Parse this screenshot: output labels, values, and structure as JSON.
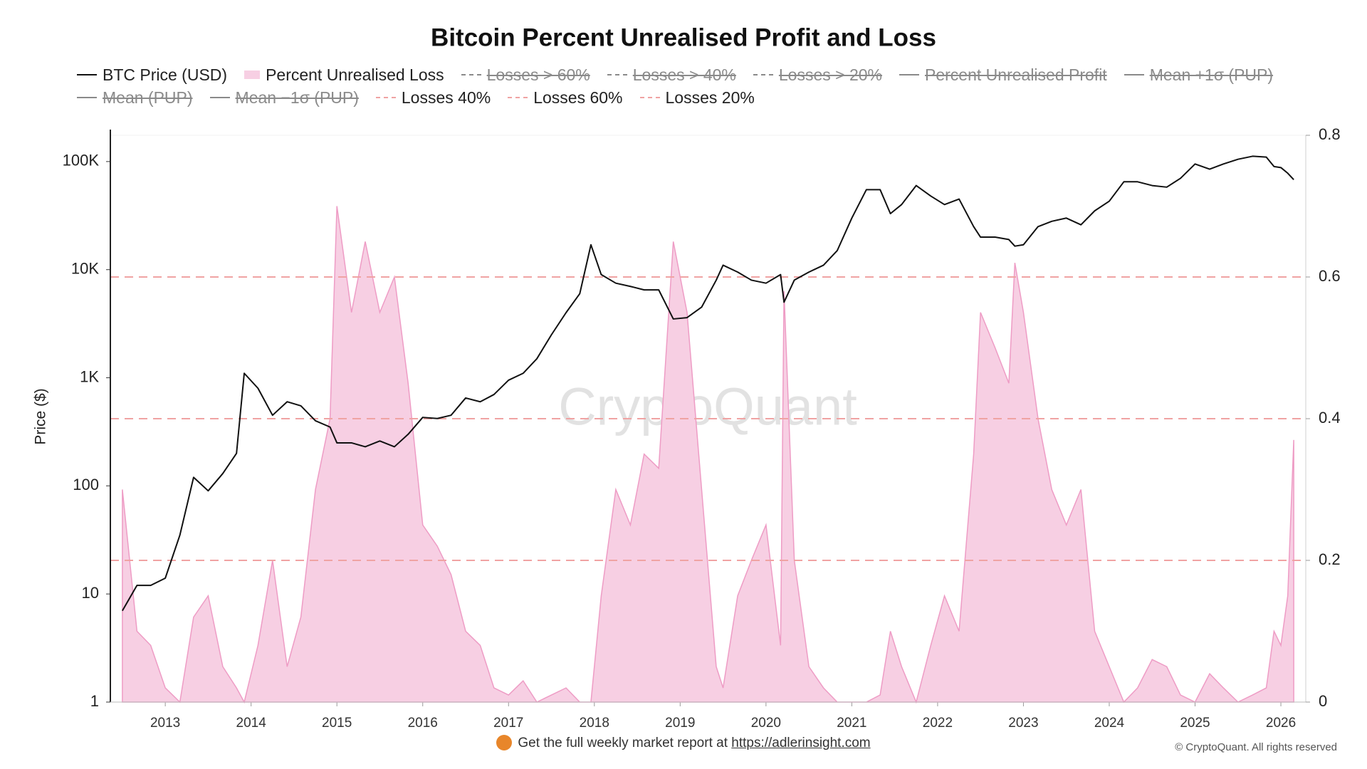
{
  "chart_data": {
    "type": "line",
    "title": "Bitcoin Percent Unrealised Profit and Loss",
    "y_label": "Price ($)",
    "watermark": "CryptoQuant",
    "footer_text": "Get the full weekly market report at",
    "footer_link": "https://adlerinsight.com",
    "copyright": "© CryptoQuant. All rights reserved",
    "ylog": true,
    "xlim": [
      2012.36,
      2026.29
    ],
    "xticks": [
      2013,
      2014,
      2015,
      2016,
      2017,
      2018,
      2019,
      2020,
      2021,
      2022,
      2023,
      2024,
      2025,
      2026
    ],
    "ylim": [
      1,
      175000
    ],
    "yticks": [
      1,
      10,
      100,
      {
        "value": 1000,
        "label": "1K"
      },
      {
        "value": 10000,
        "label": "10K"
      },
      {
        "value": 100000,
        "label": "100K"
      }
    ],
    "y2lim": [
      0,
      0.8
    ],
    "y2ticks": [
      0,
      0.2,
      0.4,
      0.6,
      0.8
    ],
    "x": [
      2012.5,
      2012.67,
      2012.83,
      2013.0,
      2013.17,
      2013.33,
      2013.5,
      2013.67,
      2013.83,
      2013.92,
      2014.08,
      2014.25,
      2014.42,
      2014.58,
      2014.75,
      2014.92,
      2015.0,
      2015.17,
      2015.33,
      2015.5,
      2015.67,
      2015.83,
      2016.0,
      2016.17,
      2016.33,
      2016.5,
      2016.67,
      2016.83,
      2017.0,
      2017.17,
      2017.33,
      2017.5,
      2017.67,
      2017.83,
      2017.96,
      2018.08,
      2018.25,
      2018.42,
      2018.58,
      2018.75,
      2018.92,
      2019.08,
      2019.25,
      2019.42,
      2019.5,
      2019.67,
      2019.83,
      2020.0,
      2020.17,
      2020.21,
      2020.33,
      2020.5,
      2020.67,
      2020.83,
      2021.0,
      2021.17,
      2021.33,
      2021.45,
      2021.58,
      2021.75,
      2021.92,
      2022.08,
      2022.25,
      2022.42,
      2022.5,
      2022.67,
      2022.83,
      2022.9,
      2023.0,
      2023.17,
      2023.33,
      2023.5,
      2023.67,
      2023.83,
      2024.0,
      2024.17,
      2024.33,
      2024.5,
      2024.67,
      2024.83,
      2025.0,
      2025.17,
      2025.33,
      2025.5,
      2025.67,
      2025.83,
      2025.92,
      2026.0,
      2026.08,
      2026.15
    ],
    "series": [
      {
        "name": "BTC Price (USD)",
        "color": "#111111",
        "axis": "y",
        "kind": "line",
        "values": [
          7,
          12,
          12,
          14,
          35,
          120,
          90,
          130,
          200,
          1100,
          800,
          450,
          600,
          550,
          400,
          350,
          250,
          250,
          230,
          260,
          230,
          300,
          430,
          420,
          450,
          650,
          600,
          700,
          950,
          1100,
          1500,
          2500,
          4000,
          6000,
          17000,
          9000,
          7500,
          7000,
          6500,
          6500,
          3500,
          3600,
          4500,
          8000,
          11000,
          9500,
          8000,
          7500,
          9000,
          5000,
          8000,
          9500,
          11000,
          15000,
          30000,
          55000,
          55000,
          33000,
          40000,
          60000,
          48000,
          40000,
          45000,
          25000,
          20000,
          20000,
          19000,
          16500,
          17000,
          25000,
          28000,
          30000,
          26000,
          35000,
          43000,
          65000,
          65000,
          60000,
          58000,
          70000,
          95000,
          85000,
          95000,
          105000,
          112000,
          110000,
          90000,
          88000,
          78000,
          68000
        ]
      },
      {
        "name": "Percent Unrealised Loss",
        "color": "#f7cfe3",
        "stroke": "#ee9cc5",
        "axis": "y2",
        "kind": "area",
        "values": [
          0.3,
          0.1,
          0.08,
          0.02,
          0,
          0.12,
          0.15,
          0.05,
          0.02,
          0,
          0.08,
          0.2,
          0.05,
          0.12,
          0.3,
          0.4,
          0.7,
          0.55,
          0.65,
          0.55,
          0.6,
          0.45,
          0.25,
          0.22,
          0.18,
          0.1,
          0.08,
          0.02,
          0.01,
          0.03,
          0,
          0.01,
          0.02,
          0,
          0,
          0.15,
          0.3,
          0.25,
          0.35,
          0.33,
          0.65,
          0.55,
          0.3,
          0.05,
          0.02,
          0.15,
          0.2,
          0.25,
          0.08,
          0.58,
          0.2,
          0.05,
          0.02,
          0,
          0,
          0,
          0.01,
          0.1,
          0.05,
          0,
          0.08,
          0.15,
          0.1,
          0.35,
          0.55,
          0.5,
          0.45,
          0.62,
          0.55,
          0.4,
          0.3,
          0.25,
          0.3,
          0.1,
          0.05,
          0,
          0.02,
          0.06,
          0.05,
          0.01,
          0,
          0.04,
          0.02,
          0,
          0.01,
          0.02,
          0.1,
          0.08,
          0.15,
          0.37
        ]
      },
      {
        "name": "Losses > 60%",
        "hidden": true,
        "symbol": "dash"
      },
      {
        "name": "Losses > 40%",
        "hidden": true,
        "symbol": "dash"
      },
      {
        "name": "Losses > 20%",
        "hidden": true,
        "symbol": "dash"
      },
      {
        "name": "Percent Unrealised Profit",
        "hidden": true,
        "symbol": "line"
      },
      {
        "name": "Mean +1σ (PUP)",
        "hidden": true,
        "symbol": "line"
      },
      {
        "name": "Mean (PUP)",
        "hidden": true,
        "symbol": "line"
      },
      {
        "name": "Mean −1σ (PUP)",
        "hidden": true,
        "symbol": "line"
      },
      {
        "name": "Losses 40%",
        "color": "#f0a3a3",
        "axis": "y2",
        "kind": "level",
        "level": 0.4
      },
      {
        "name": "Losses 60%",
        "color": "#f0a3a3",
        "axis": "y2",
        "kind": "level",
        "level": 0.6
      },
      {
        "name": "Losses 20%",
        "color": "#f0a3a3",
        "axis": "y2",
        "kind": "level",
        "level": 0.2
      }
    ]
  }
}
